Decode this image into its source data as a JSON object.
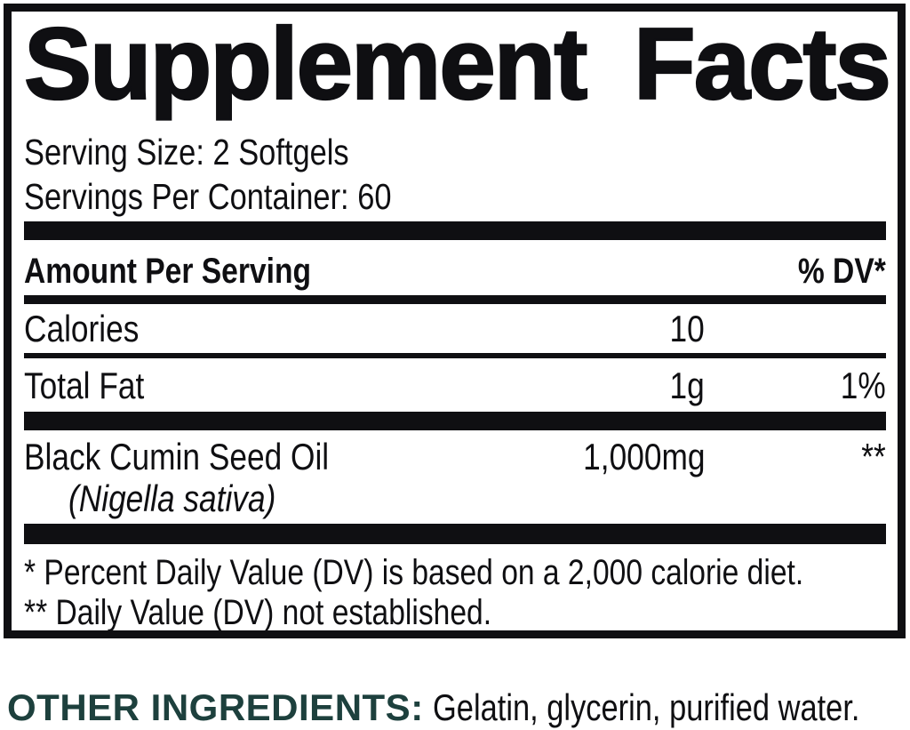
{
  "panel": {
    "title": "Supplement Facts",
    "serving_size": "Serving Size: 2 Softgels",
    "servings_per_container": "Servings Per Container: 60",
    "header": {
      "amount_label": "Amount Per Serving",
      "dv_label": "% DV*"
    },
    "rows": [
      {
        "name": "Calories",
        "amount": "10",
        "dv": ""
      },
      {
        "name": "Total Fat",
        "amount": "1g",
        "dv": "1%"
      },
      {
        "name": "Black Cumin Seed Oil",
        "name_sub": "(Nigella sativa)",
        "amount": "1,000mg",
        "dv": "**"
      }
    ],
    "footnotes": [
      "* Percent Daily Value (DV) is based on a 2,000 calorie diet.",
      "** Daily Value (DV) not established."
    ]
  },
  "other_ingredients": {
    "label": "OTHER INGREDIENTS:",
    "text": "Gelatin, glycerin, purified water."
  },
  "colors": {
    "ink": "#0f0f12",
    "accent": "#1d403d",
    "background": "#ffffff"
  }
}
